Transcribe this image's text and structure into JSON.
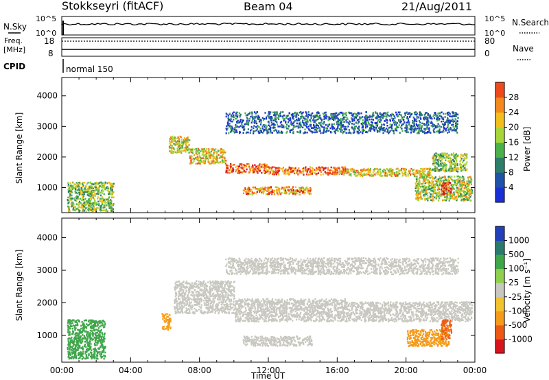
{
  "header": {
    "station": "Stokkseyri (fitACF)",
    "beam": "Beam 04",
    "date": "21/Aug/2011"
  },
  "params": {
    "nsky_label": "N.Sky",
    "nsearch_label": "N.Search",
    "count_top": "10^5",
    "count_bottom": "10^0",
    "freq_label": "Freq.",
    "freq_unit": "[MHz]",
    "freq_ticks": [
      "18",
      "8"
    ],
    "nave_label": "Nave",
    "nave_ticks": [
      "80",
      "0"
    ],
    "cpid_label": "CPID",
    "cpid_value": "normal 150"
  },
  "colors": {
    "power": [
      "#1a2fd6",
      "#1f52a8",
      "#2e7d6a",
      "#4bb24b",
      "#a6d63a",
      "#f2c01c",
      "#f58a1c",
      "#ef4a1e",
      "#d8141c"
    ],
    "velocity": [
      "#d8141c",
      "#ee5a14",
      "#f59a1a",
      "#f2c32e",
      "#c8c8c0",
      "#8fd14f",
      "#3fa64a",
      "#2a7a6e",
      "#2340b8"
    ],
    "ground_scatter": "#c8c8c0"
  },
  "chart_data": [
    {
      "type": "heatmap",
      "name_hidden": "power-panel",
      "xlabel": "",
      "ylabel": "Slant Range [km]",
      "xlim": [
        0,
        24
      ],
      "ylim": [
        180,
        4600
      ],
      "yticks": [
        "1000",
        "2000",
        "3000",
        "4000"
      ],
      "colorbar": {
        "label": "Power [dB]",
        "ticks": [
          "4",
          "8",
          "12",
          "16",
          "20",
          "24",
          "28"
        ],
        "range": [
          0,
          32
        ]
      },
      "regions": [
        {
          "x": [
            6.2,
            7.4
          ],
          "y": [
            2150,
            2700
          ],
          "level": 0.55
        },
        {
          "x": [
            7.4,
            9.5
          ],
          "y": [
            1800,
            2300
          ],
          "level": 0.6
        },
        {
          "x": [
            9.5,
            12
          ],
          "y": [
            1500,
            1800
          ],
          "level": 0.8
        },
        {
          "x": [
            12,
            16.5
          ],
          "y": [
            1450,
            1700
          ],
          "level": 0.75
        },
        {
          "x": [
            16.5,
            21.5
          ],
          "y": [
            1400,
            1650
          ],
          "level": 0.6
        },
        {
          "x": [
            21.5,
            23.5
          ],
          "y": [
            1550,
            2150
          ],
          "level": 0.45
        },
        {
          "x": [
            10.5,
            14.5
          ],
          "y": [
            800,
            1050
          ],
          "level": 0.7
        },
        {
          "x": [
            0.3,
            3
          ],
          "y": [
            250,
            1200
          ],
          "level": 0.45
        },
        {
          "x": [
            20.5,
            23.8
          ],
          "y": [
            600,
            1400
          ],
          "level": 0.5
        },
        {
          "x": [
            22,
            22.6
          ],
          "y": [
            800,
            1200
          ],
          "level": 0.9
        },
        {
          "x": [
            9.5,
            23
          ],
          "y": [
            2800,
            3500
          ],
          "level": 0.2
        }
      ]
    },
    {
      "type": "heatmap",
      "name_hidden": "velocity-panel",
      "xlabel": "Time UT",
      "ylabel": "Slant Range [km]",
      "xlim": [
        0,
        24
      ],
      "ylim": [
        180,
        4600
      ],
      "yticks": [
        "1000",
        "2000",
        "3000",
        "4000"
      ],
      "xticks": [
        "00:00",
        "04:00",
        "08:00",
        "12:00",
        "16:00",
        "20:00",
        "00:00"
      ],
      "colorbar": {
        "label": "Velocity [m s⁻¹]",
        "ticks": [
          "1000",
          "500",
          "100",
          "25",
          "-25",
          "-100",
          "-500",
          "-1000"
        ]
      },
      "regions": [
        {
          "x": [
            6.5,
            10
          ],
          "y": [
            1700,
            2700
          ],
          "v": 0
        },
        {
          "x": [
            10,
            16.5
          ],
          "y": [
            1450,
            2150
          ],
          "v": 0
        },
        {
          "x": [
            16.5,
            23.8
          ],
          "y": [
            1450,
            2050
          ],
          "v": 0
        },
        {
          "x": [
            0.3,
            2.5
          ],
          "y": [
            300,
            1500
          ],
          "v": 200
        },
        {
          "x": [
            5.8,
            6.3
          ],
          "y": [
            1200,
            1700
          ],
          "v": -150
        },
        {
          "x": [
            20,
            22.5
          ],
          "y": [
            700,
            1200
          ],
          "v": -300
        },
        {
          "x": [
            22,
            22.6
          ],
          "y": [
            900,
            1500
          ],
          "v": -700
        },
        {
          "x": [
            10.5,
            14.5
          ],
          "y": [
            700,
            1000
          ],
          "v": 0
        },
        {
          "x": [
            9.5,
            23
          ],
          "y": [
            2900,
            3400
          ],
          "v": 0
        }
      ]
    }
  ]
}
